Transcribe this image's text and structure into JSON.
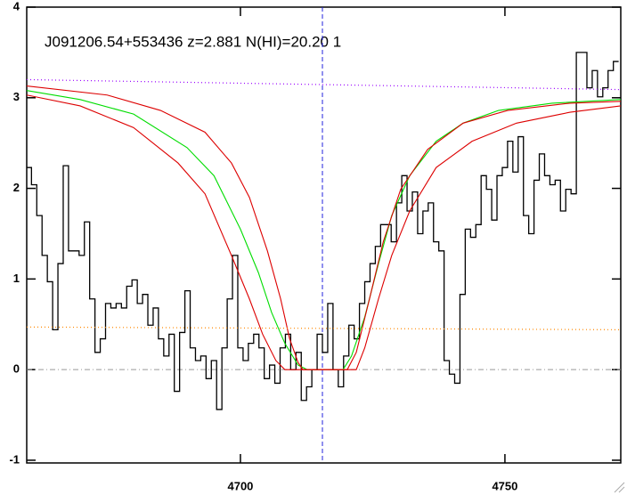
{
  "chart_data": {
    "type": "line",
    "title": "J091206.54+553436 z=2.881 N(HI)=20.20 1",
    "xlim": [
      4659.6,
      4771.9
    ],
    "ylim": [
      -1.03,
      4.0
    ],
    "xticks": [
      4700,
      4750
    ],
    "yticks": [
      -1,
      0,
      1,
      2,
      3,
      4
    ],
    "absorber_x": 4715.5,
    "zero_line": 0,
    "series": [
      {
        "color": "#000000",
        "step": true,
        "x": [
          4660,
          4661,
          4662,
          4663,
          4664,
          4665,
          4666,
          4667,
          4668,
          4669,
          4670,
          4671,
          4672,
          4673,
          4674,
          4675,
          4676,
          4677,
          4678,
          4679,
          4680,
          4681,
          4682,
          4683,
          4684,
          4685,
          4686,
          4687,
          4688,
          4689,
          4690,
          4691,
          4692,
          4693,
          4694,
          4695,
          4696,
          4697,
          4698,
          4699,
          4700,
          4701,
          4702,
          4703,
          4704,
          4705,
          4706,
          4707,
          4708,
          4709,
          4710,
          4711,
          4712,
          4713,
          4714,
          4715,
          4716,
          4717,
          4718,
          4719,
          4720,
          4721,
          4722,
          4723,
          4724,
          4725,
          4726,
          4727,
          4728,
          4729,
          4730,
          4731,
          4732,
          4733,
          4734,
          4735,
          4736,
          4737,
          4738,
          4739,
          4740,
          4741,
          4742,
          4743,
          4744,
          4745,
          4746,
          4747,
          4748,
          4749,
          4750,
          4751,
          4752,
          4753,
          4754,
          4755,
          4756,
          4757,
          4758,
          4759,
          4760,
          4761,
          4762,
          4763,
          4764,
          4765,
          4766,
          4767,
          4768,
          4769,
          4770,
          4771
        ],
        "values": [
          2.23,
          2.04,
          1.7,
          1.26,
          0.97,
          0.44,
          1.17,
          2.25,
          1.31,
          1.31,
          1.26,
          1.63,
          0.78,
          0.19,
          0.34,
          0.73,
          0.68,
          0.73,
          0.68,
          0.92,
          0.99,
          0.73,
          0.83,
          0.49,
          0.68,
          0.34,
          0.15,
          0.39,
          -0.24,
          0.41,
          0.87,
          0.24,
          0.1,
          0.15,
          -0.1,
          0.1,
          -0.44,
          0.24,
          0.78,
          1.26,
          0.24,
          0.1,
          0.29,
          0.39,
          0.24,
          -0.1,
          0.05,
          -0.15,
          0.24,
          0.39,
          0,
          0.19,
          -0.34,
          -0.19,
          0,
          0.39,
          0.19,
          0.73,
          0,
          -0.19,
          0.15,
          0.49,
          0.34,
          0.73,
          0.97,
          1.17,
          1.36,
          1.6,
          1.6,
          1.41,
          1.84,
          2.14,
          1.75,
          1.96,
          1.5,
          1.75,
          1.84,
          1.41,
          1.31,
          0.1,
          -0.05,
          -0.15,
          0.83,
          1.55,
          1.46,
          1.6,
          2.14,
          1.99,
          1.65,
          2.14,
          2.23,
          2.52,
          2.18,
          2.57,
          1.7,
          1.5,
          2.09,
          2.38,
          2.14,
          2.04,
          2.09,
          1.75,
          1.99,
          1.94,
          3.5,
          3.5,
          3.11,
          3.3,
          3.01,
          3.11,
          3.3,
          3.4
        ]
      },
      {
        "color": "#00dd00",
        "x": [
          4659.6,
          4669.7,
          4679.8,
          4689.9,
          4695.0,
          4700.0,
          4703.4,
          4705.9,
          4708.4,
          4710.9,
          4712.6,
          4719.4,
          4721.0,
          4723.5,
          4726.1,
          4728.6,
          4732.0,
          4737.0,
          4742.1,
          4748.8,
          4758.9,
          4771.9
        ],
        "values": [
          3.08,
          2.98,
          2.82,
          2.45,
          2.14,
          1.55,
          1.07,
          0.63,
          0.29,
          0.05,
          0,
          0,
          0.15,
          0.58,
          1.17,
          1.7,
          2.14,
          2.52,
          2.72,
          2.86,
          2.94,
          2.98
        ]
      },
      {
        "color": "#dd0000",
        "x": [
          4659.6,
          4674.8,
          4684.9,
          4693.3,
          4698.3,
          4701.7,
          4705.1,
          4707.6,
          4709.3,
          4710.9,
          4711.8,
          4720.2,
          4721.9,
          4724.4,
          4727.0,
          4730.3,
          4735.4,
          4742.1,
          4750.5,
          4762.3,
          4771.9
        ],
        "values": [
          3.13,
          3.03,
          2.86,
          2.62,
          2.28,
          1.9,
          1.31,
          0.78,
          0.34,
          0.08,
          0,
          0,
          0.19,
          0.78,
          1.41,
          1.99,
          2.43,
          2.72,
          2.86,
          2.94,
          2.96
        ]
      },
      {
        "color": "#dd0000",
        "x": [
          4659.6,
          4669.7,
          4679.8,
          4688.2,
          4693.3,
          4698.3,
          4701.7,
          4704.2,
          4706.7,
          4708.4,
          4721.9,
          4723.5,
          4726.1,
          4728.6,
          4732.0,
          4737.0,
          4743.8,
          4752.2,
          4762.3,
          4771.9
        ],
        "values": [
          3.03,
          2.91,
          2.67,
          2.28,
          1.94,
          1.26,
          0.78,
          0.39,
          0.1,
          0,
          0,
          0.24,
          0.78,
          1.26,
          1.75,
          2.23,
          2.52,
          2.72,
          2.84,
          2.91
        ]
      },
      {
        "color": "#9900ff",
        "dotted": true,
        "x": [
          4659.6,
          4771.9
        ],
        "values": [
          3.2,
          3.09
        ]
      },
      {
        "color": "#ff8800",
        "dotted": true,
        "x": [
          4659.6,
          4771.9
        ],
        "values": [
          0.47,
          0.44
        ]
      }
    ]
  }
}
